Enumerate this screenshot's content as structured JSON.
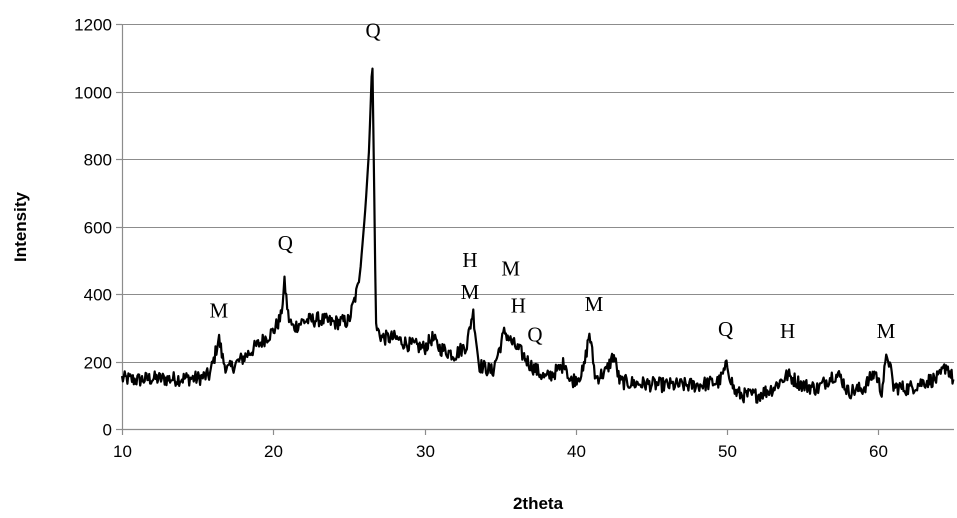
{
  "chart_data": {
    "type": "line",
    "xlabel": "2theta",
    "ylabel": "Intensity",
    "xlim": [
      10,
      65
    ],
    "ylim": [
      0,
      1200
    ],
    "x_ticks": [
      10,
      20,
      30,
      40,
      50,
      60
    ],
    "y_ticks": [
      0,
      200,
      400,
      600,
      800,
      1000,
      1200
    ],
    "grid": "horizontal",
    "legend": "none",
    "line_color": "#000000",
    "series": [
      {
        "x": [
          10,
          11,
          12,
          13,
          14,
          15,
          15.8,
          16.1,
          16.4,
          16.7,
          17,
          18,
          19,
          20,
          20.5,
          20.75,
          21,
          21.3,
          22,
          23,
          24,
          25,
          25.6,
          26,
          26.3,
          26.55,
          26.8,
          27.2,
          28,
          29,
          30,
          30.5,
          31,
          32,
          32.8,
          33.2,
          33.6,
          34.5,
          35.3,
          35.7,
          36.5,
          37,
          38,
          39,
          39.3,
          39.6,
          40,
          40.5,
          40.9,
          41.3,
          42,
          42.5,
          42.9,
          44,
          46,
          48,
          49.5,
          50,
          50.5,
          51,
          52,
          53,
          54,
          55,
          56,
          57,
          57.5,
          58,
          59,
          59.8,
          60.2,
          60.6,
          61,
          62,
          63,
          64,
          64.5,
          65
        ],
        "y": [
          150,
          145,
          150,
          148,
          150,
          150,
          160,
          210,
          270,
          200,
          175,
          210,
          250,
          290,
          330,
          435,
          330,
          300,
          320,
          325,
          315,
          320,
          420,
          600,
          800,
          1100,
          300,
          270,
          270,
          250,
          240,
          270,
          240,
          220,
          250,
          350,
          190,
          170,
          290,
          260,
          220,
          190,
          150,
          180,
          200,
          140,
          150,
          170,
          285,
          150,
          170,
          220,
          140,
          135,
          130,
          130,
          140,
          190,
          110,
          100,
          100,
          120,
          160,
          130,
          120,
          160,
          155,
          110,
          120,
          170,
          110,
          225,
          125,
          120,
          140,
          150,
          190,
          140
        ]
      }
    ],
    "annotations": [
      {
        "text": "M",
        "x": 16.4,
        "y": 330
      },
      {
        "text": "Q",
        "x": 20.8,
        "y": 530
      },
      {
        "text": "Q",
        "x": 26.6,
        "y": 1160
      },
      {
        "text": "H",
        "x": 33.0,
        "y": 480
      },
      {
        "text": "M",
        "x": 33.0,
        "y": 385
      },
      {
        "text": "M",
        "x": 35.7,
        "y": 455
      },
      {
        "text": "H",
        "x": 36.2,
        "y": 345
      },
      {
        "text": "Q",
        "x": 37.3,
        "y": 260
      },
      {
        "text": "M",
        "x": 41.2,
        "y": 350
      },
      {
        "text": "Q",
        "x": 49.9,
        "y": 275
      },
      {
        "text": "H",
        "x": 54.0,
        "y": 270
      },
      {
        "text": "M",
        "x": 60.5,
        "y": 270
      }
    ]
  }
}
